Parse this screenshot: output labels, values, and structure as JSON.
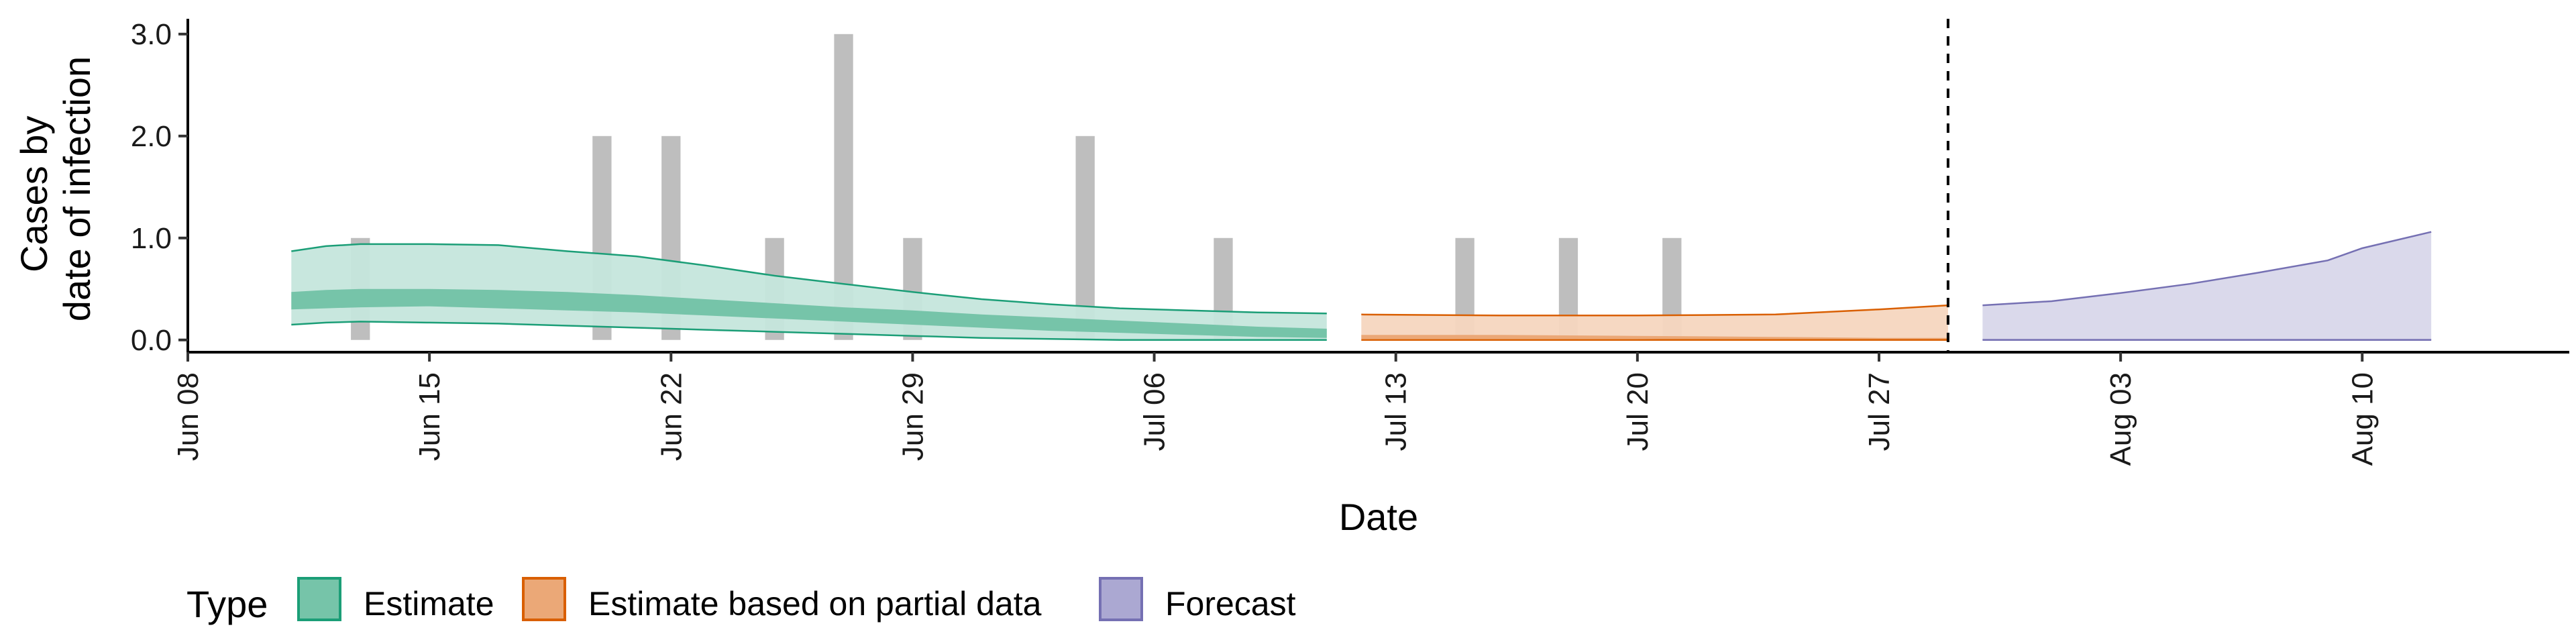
{
  "chart_data": {
    "type": "area",
    "xlabel": "Date",
    "ylabel_lines": [
      "Cases by",
      "date of infection"
    ],
    "x_range": [
      "2020-06-08",
      "2020-08-16"
    ],
    "ylim": [
      -0.12,
      3.15
    ],
    "y_ticks": [
      0.0,
      1.0,
      2.0,
      3.0
    ],
    "y_tick_labels": [
      "0.0",
      "1.0",
      "2.0",
      "3.0"
    ],
    "x_ticks": [
      "2020-06-08",
      "2020-06-15",
      "2020-06-22",
      "2020-06-29",
      "2020-07-06",
      "2020-07-13",
      "2020-07-20",
      "2020-07-27",
      "2020-08-03",
      "2020-08-10"
    ],
    "x_tick_labels": [
      "Jun 08",
      "Jun 15",
      "Jun 22",
      "Jun 29",
      "Jul 06",
      "Jul 13",
      "Jul 20",
      "Jul 27",
      "Aug 03",
      "Aug 10"
    ],
    "grid": false,
    "forecast_start_line": "2020-07-29",
    "bar_color": "#bebebe",
    "observed_cases": [
      {
        "date": "2020-06-13",
        "value": 1
      },
      {
        "date": "2020-06-20",
        "value": 2
      },
      {
        "date": "2020-06-22",
        "value": 2
      },
      {
        "date": "2020-06-25",
        "value": 1
      },
      {
        "date": "2020-06-27",
        "value": 3
      },
      {
        "date": "2020-06-29",
        "value": 1
      },
      {
        "date": "2020-07-04",
        "value": 2
      },
      {
        "date": "2020-07-08",
        "value": 1
      },
      {
        "date": "2020-07-15",
        "value": 1
      },
      {
        "date": "2020-07-18",
        "value": 1
      },
      {
        "date": "2020-07-21",
        "value": 1
      }
    ],
    "series": [
      {
        "name": "Estimate",
        "color": "#1b9e77",
        "outer_fill": "#c5e6dc",
        "inner_fill": "#76c4a9",
        "dates": [
          "2020-06-11",
          "2020-06-12",
          "2020-06-13",
          "2020-06-15",
          "2020-06-17",
          "2020-06-19",
          "2020-06-21",
          "2020-06-23",
          "2020-06-25",
          "2020-06-27",
          "2020-06-29",
          "2020-07-01",
          "2020-07-03",
          "2020-07-05",
          "2020-07-07",
          "2020-07-09",
          "2020-07-11"
        ],
        "outer_upper": [
          0.87,
          0.92,
          0.94,
          0.94,
          0.93,
          0.87,
          0.82,
          0.73,
          0.63,
          0.55,
          0.47,
          0.4,
          0.35,
          0.31,
          0.29,
          0.27,
          0.26
        ],
        "inner_upper": [
          0.47,
          0.49,
          0.5,
          0.5,
          0.49,
          0.47,
          0.44,
          0.4,
          0.36,
          0.32,
          0.29,
          0.25,
          0.22,
          0.19,
          0.16,
          0.13,
          0.11
        ],
        "inner_lower": [
          0.3,
          0.31,
          0.32,
          0.33,
          0.31,
          0.29,
          0.27,
          0.24,
          0.21,
          0.18,
          0.15,
          0.12,
          0.09,
          0.07,
          0.05,
          0.03,
          0.02
        ],
        "outer_lower": [
          0.15,
          0.17,
          0.18,
          0.17,
          0.16,
          0.14,
          0.12,
          0.1,
          0.08,
          0.06,
          0.04,
          0.02,
          0.01,
          0.0,
          0.0,
          0.0,
          0.0
        ]
      },
      {
        "name": "Estimate based on partial data",
        "color": "#d95f02",
        "outer_fill": "#f5d6bf",
        "inner_fill": "#eba877",
        "dates": [
          "2020-07-12",
          "2020-07-16",
          "2020-07-20",
          "2020-07-24",
          "2020-07-27",
          "2020-07-29"
        ],
        "outer_upper": [
          0.25,
          0.24,
          0.24,
          0.25,
          0.3,
          0.34
        ],
        "inner_upper": [
          0.05,
          0.05,
          0.04,
          0.03,
          0.02,
          0.02
        ],
        "inner_lower": [
          0.01,
          0.01,
          0.01,
          0.0,
          0.0,
          0.0
        ],
        "outer_lower": [
          0.0,
          0.0,
          0.0,
          0.0,
          0.0,
          0.0
        ]
      },
      {
        "name": "Forecast",
        "color": "#7570b3",
        "outer_fill": "#d8d7ea",
        "inner_fill": "#aba8d2",
        "dates": [
          "2020-07-30",
          "2020-08-01",
          "2020-08-03",
          "2020-08-05",
          "2020-08-07",
          "2020-08-09",
          "2020-08-10",
          "2020-08-12"
        ],
        "outer_upper": [
          0.34,
          0.38,
          0.46,
          0.55,
          0.66,
          0.78,
          0.9,
          1.06
        ],
        "inner_upper": [
          0.01,
          0.01,
          0.01,
          0.01,
          0.01,
          0.01,
          0.01,
          0.01
        ],
        "inner_lower": [
          0.0,
          0.0,
          0.0,
          0.0,
          0.0,
          0.0,
          0.0,
          0.0
        ],
        "outer_lower": [
          0.0,
          0.0,
          0.0,
          0.0,
          0.0,
          0.0,
          0.0,
          0.0
        ]
      }
    ],
    "legend": {
      "title": "Type",
      "placement": "bottom",
      "items": [
        "Estimate",
        "Estimate based on partial data",
        "Forecast"
      ]
    }
  }
}
